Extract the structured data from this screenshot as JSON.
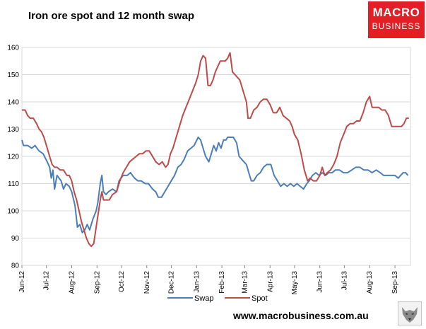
{
  "header": {
    "title": "Iron ore spot and 12 month swap",
    "logo_line1": "MACRO",
    "logo_line2": "BUSINESS"
  },
  "footer": {
    "url": "www.macrobusiness.com.au"
  },
  "colors": {
    "swap": "#4a7ebb",
    "spot": "#be4b48",
    "logo": "#e31e24",
    "grid": "#d9d9d9"
  },
  "icons": [
    "wolf-logo-icon"
  ],
  "chart_data": {
    "type": "line",
    "title": "Iron ore spot and 12 month swap",
    "xlabel": "",
    "ylabel": "",
    "ylim": [
      80,
      160
    ],
    "yticks": [
      80,
      90,
      100,
      110,
      120,
      130,
      140,
      150,
      160
    ],
    "xlim": [
      "2012-06-01",
      "2013-09-20"
    ],
    "x_ticks": [
      {
        "label": "Jun-12",
        "date": "2012-06-01"
      },
      {
        "label": "Jul-12",
        "date": "2012-07-01"
      },
      {
        "label": "Aug-12",
        "date": "2012-08-01"
      },
      {
        "label": "Sep-12",
        "date": "2012-09-01"
      },
      {
        "label": "Oct-12",
        "date": "2012-10-01"
      },
      {
        "label": "Nov-12",
        "date": "2012-11-01"
      },
      {
        "label": "Dec-12",
        "date": "2012-12-01"
      },
      {
        "label": "Jan-13",
        "date": "2013-01-01"
      },
      {
        "label": "Feb-13",
        "date": "2013-02-01"
      },
      {
        "label": "Mar-13",
        "date": "2013-03-01"
      },
      {
        "label": "Apr-13",
        "date": "2013-04-01"
      },
      {
        "label": "May-13",
        "date": "2013-05-01"
      },
      {
        "label": "Jun-13",
        "date": "2013-06-01"
      },
      {
        "label": "Jul-13",
        "date": "2013-07-01"
      },
      {
        "label": "Aug-13",
        "date": "2013-08-01"
      },
      {
        "label": "Sep-13",
        "date": "2013-09-01"
      }
    ],
    "grid": true,
    "legend": "bottom",
    "series": [
      {
        "name": "Swap",
        "points": [
          [
            "2012-06-01",
            126
          ],
          [
            "2012-06-03",
            124
          ],
          [
            "2012-06-08",
            124
          ],
          [
            "2012-06-13",
            123
          ],
          [
            "2012-06-17",
            124
          ],
          [
            "2012-06-22",
            122
          ],
          [
            "2012-06-27",
            121
          ],
          [
            "2012-07-02",
            118
          ],
          [
            "2012-07-05",
            116
          ],
          [
            "2012-07-07",
            112
          ],
          [
            "2012-07-09",
            115
          ],
          [
            "2012-07-11",
            108
          ],
          [
            "2012-07-14",
            113
          ],
          [
            "2012-07-19",
            111
          ],
          [
            "2012-07-22",
            108
          ],
          [
            "2012-07-25",
            110
          ],
          [
            "2012-07-29",
            109
          ],
          [
            "2012-08-01",
            107
          ],
          [
            "2012-08-05",
            102
          ],
          [
            "2012-08-08",
            94
          ],
          [
            "2012-08-11",
            95
          ],
          [
            "2012-08-14",
            92
          ],
          [
            "2012-08-17",
            93
          ],
          [
            "2012-08-20",
            95
          ],
          [
            "2012-08-23",
            93
          ],
          [
            "2012-08-27",
            97
          ],
          [
            "2012-08-31",
            100
          ],
          [
            "2012-09-02",
            103
          ],
          [
            "2012-09-05",
            110
          ],
          [
            "2012-09-07",
            113
          ],
          [
            "2012-09-09",
            107
          ],
          [
            "2012-09-12",
            106
          ],
          [
            "2012-09-15",
            107
          ],
          [
            "2012-09-20",
            108
          ],
          [
            "2012-09-25",
            107
          ],
          [
            "2012-09-28",
            111
          ],
          [
            "2012-10-03",
            113
          ],
          [
            "2012-10-08",
            113
          ],
          [
            "2012-10-12",
            114
          ],
          [
            "2012-10-17",
            112
          ],
          [
            "2012-10-21",
            111
          ],
          [
            "2012-10-25",
            111
          ],
          [
            "2012-10-30",
            110
          ],
          [
            "2012-11-03",
            110
          ],
          [
            "2012-11-08",
            108
          ],
          [
            "2012-11-12",
            107
          ],
          [
            "2012-11-15",
            105
          ],
          [
            "2012-11-19",
            105
          ],
          [
            "2012-11-23",
            107
          ],
          [
            "2012-11-27",
            109
          ],
          [
            "2012-12-01",
            111
          ],
          [
            "2012-12-05",
            113
          ],
          [
            "2012-12-09",
            116
          ],
          [
            "2012-12-13",
            117
          ],
          [
            "2012-12-17",
            119
          ],
          [
            "2012-12-21",
            122
          ],
          [
            "2012-12-25",
            123
          ],
          [
            "2012-12-29",
            124
          ],
          [
            "2013-01-03",
            127
          ],
          [
            "2013-01-06",
            126
          ],
          [
            "2013-01-09",
            123
          ],
          [
            "2013-01-12",
            120
          ],
          [
            "2013-01-16",
            118
          ],
          [
            "2013-01-19",
            121
          ],
          [
            "2013-01-22",
            124
          ],
          [
            "2013-01-25",
            122
          ],
          [
            "2013-01-28",
            125
          ],
          [
            "2013-01-31",
            123
          ],
          [
            "2013-02-03",
            126
          ],
          [
            "2013-02-06",
            126
          ],
          [
            "2013-02-08",
            127
          ],
          [
            "2013-02-11",
            127
          ],
          [
            "2013-02-15",
            127
          ],
          [
            "2013-02-19",
            125
          ],
          [
            "2013-02-22",
            120
          ],
          [
            "2013-02-25",
            119
          ],
          [
            "2013-02-28",
            118
          ],
          [
            "2013-03-03",
            117
          ],
          [
            "2013-03-06",
            114
          ],
          [
            "2013-03-09",
            111
          ],
          [
            "2013-03-12",
            111
          ],
          [
            "2013-03-16",
            113
          ],
          [
            "2013-03-20",
            114
          ],
          [
            "2013-03-24",
            116
          ],
          [
            "2013-03-28",
            117
          ],
          [
            "2013-04-02",
            117
          ],
          [
            "2013-04-06",
            113
          ],
          [
            "2013-04-10",
            111
          ],
          [
            "2013-04-14",
            109
          ],
          [
            "2013-04-18",
            110
          ],
          [
            "2013-04-22",
            109
          ],
          [
            "2013-04-26",
            110
          ],
          [
            "2013-04-30",
            109
          ],
          [
            "2013-05-04",
            110
          ],
          [
            "2013-05-08",
            109
          ],
          [
            "2013-05-12",
            108
          ],
          [
            "2013-05-16",
            110
          ],
          [
            "2013-05-19",
            111
          ],
          [
            "2013-05-23",
            113
          ],
          [
            "2013-05-27",
            114
          ],
          [
            "2013-05-31",
            113
          ],
          [
            "2013-06-04",
            114
          ],
          [
            "2013-06-08",
            113
          ],
          [
            "2013-06-12",
            114
          ],
          [
            "2013-06-16",
            114
          ],
          [
            "2013-06-20",
            115
          ],
          [
            "2013-06-25",
            115
          ],
          [
            "2013-06-30",
            114
          ],
          [
            "2013-07-05",
            114
          ],
          [
            "2013-07-10",
            115
          ],
          [
            "2013-07-15",
            116
          ],
          [
            "2013-07-20",
            116
          ],
          [
            "2013-07-25",
            115
          ],
          [
            "2013-07-30",
            115
          ],
          [
            "2013-08-04",
            114
          ],
          [
            "2013-08-09",
            115
          ],
          [
            "2013-08-14",
            114
          ],
          [
            "2013-08-18",
            113
          ],
          [
            "2013-08-22",
            113
          ],
          [
            "2013-08-27",
            113
          ],
          [
            "2013-09-01",
            113
          ],
          [
            "2013-09-05",
            112
          ],
          [
            "2013-09-08",
            113
          ],
          [
            "2013-09-11",
            114
          ],
          [
            "2013-09-14",
            114
          ],
          [
            "2013-09-17",
            113
          ]
        ]
      },
      {
        "name": "Spot",
        "points": [
          [
            "2012-06-01",
            137
          ],
          [
            "2012-06-05",
            137
          ],
          [
            "2012-06-08",
            135
          ],
          [
            "2012-06-11",
            134
          ],
          [
            "2012-06-15",
            134
          ],
          [
            "2012-06-19",
            132
          ],
          [
            "2012-06-22",
            130
          ],
          [
            "2012-06-25",
            129
          ],
          [
            "2012-06-28",
            127
          ],
          [
            "2012-07-01",
            124
          ],
          [
            "2012-07-04",
            121
          ],
          [
            "2012-07-06",
            119
          ],
          [
            "2012-07-08",
            117
          ],
          [
            "2012-07-11",
            116
          ],
          [
            "2012-07-14",
            116
          ],
          [
            "2012-07-18",
            115
          ],
          [
            "2012-07-22",
            115
          ],
          [
            "2012-07-26",
            113
          ],
          [
            "2012-07-29",
            113
          ],
          [
            "2012-08-01",
            111
          ],
          [
            "2012-08-04",
            107
          ],
          [
            "2012-08-07",
            104
          ],
          [
            "2012-08-10",
            100
          ],
          [
            "2012-08-13",
            96
          ],
          [
            "2012-08-16",
            93
          ],
          [
            "2012-08-19",
            90
          ],
          [
            "2012-08-22",
            88
          ],
          [
            "2012-08-25",
            87
          ],
          [
            "2012-08-28",
            88
          ],
          [
            "2012-08-31",
            94
          ],
          [
            "2012-09-03",
            100
          ],
          [
            "2012-09-05",
            104
          ],
          [
            "2012-09-07",
            107
          ],
          [
            "2012-09-09",
            104
          ],
          [
            "2012-09-12",
            104
          ],
          [
            "2012-09-16",
            104
          ],
          [
            "2012-09-20",
            106
          ],
          [
            "2012-09-25",
            107
          ],
          [
            "2012-09-29",
            111
          ],
          [
            "2012-10-03",
            114
          ],
          [
            "2012-10-07",
            116
          ],
          [
            "2012-10-11",
            118
          ],
          [
            "2012-10-15",
            119
          ],
          [
            "2012-10-19",
            120
          ],
          [
            "2012-10-23",
            121
          ],
          [
            "2012-10-27",
            121
          ],
          [
            "2012-10-31",
            122
          ],
          [
            "2012-11-04",
            122
          ],
          [
            "2012-11-08",
            120
          ],
          [
            "2012-11-12",
            118
          ],
          [
            "2012-11-16",
            117
          ],
          [
            "2012-11-20",
            118
          ],
          [
            "2012-11-24",
            116
          ],
          [
            "2012-11-27",
            117
          ],
          [
            "2012-11-30",
            121
          ],
          [
            "2012-12-03",
            123
          ],
          [
            "2012-12-07",
            127
          ],
          [
            "2012-12-11",
            131
          ],
          [
            "2012-12-15",
            135
          ],
          [
            "2012-12-19",
            138
          ],
          [
            "2012-12-23",
            141
          ],
          [
            "2012-12-27",
            144
          ],
          [
            "2012-12-31",
            147
          ],
          [
            "2013-01-03",
            150
          ],
          [
            "2013-01-06",
            155
          ],
          [
            "2013-01-09",
            157
          ],
          [
            "2013-01-12",
            156
          ],
          [
            "2013-01-15",
            146
          ],
          [
            "2013-01-18",
            146
          ],
          [
            "2013-01-21",
            148
          ],
          [
            "2013-01-24",
            151
          ],
          [
            "2013-01-27",
            153
          ],
          [
            "2013-01-30",
            155
          ],
          [
            "2013-02-02",
            155
          ],
          [
            "2013-02-05",
            155
          ],
          [
            "2013-02-08",
            156
          ],
          [
            "2013-02-11",
            158
          ],
          [
            "2013-02-14",
            151
          ],
          [
            "2013-02-17",
            150
          ],
          [
            "2013-02-20",
            149
          ],
          [
            "2013-02-23",
            148
          ],
          [
            "2013-02-26",
            145
          ],
          [
            "2013-02-28",
            143
          ],
          [
            "2013-03-03",
            140
          ],
          [
            "2013-03-05",
            134
          ],
          [
            "2013-03-08",
            134
          ],
          [
            "2013-03-12",
            137
          ],
          [
            "2013-03-16",
            138
          ],
          [
            "2013-03-20",
            140
          ],
          [
            "2013-03-24",
            141
          ],
          [
            "2013-03-28",
            141
          ],
          [
            "2013-04-01",
            139
          ],
          [
            "2013-04-05",
            136
          ],
          [
            "2013-04-09",
            136
          ],
          [
            "2013-04-13",
            138
          ],
          [
            "2013-04-17",
            135
          ],
          [
            "2013-04-21",
            134
          ],
          [
            "2013-04-25",
            133
          ],
          [
            "2013-04-28",
            131
          ],
          [
            "2013-05-01",
            128
          ],
          [
            "2013-05-05",
            126
          ],
          [
            "2013-05-09",
            121
          ],
          [
            "2013-05-13",
            115
          ],
          [
            "2013-05-17",
            111
          ],
          [
            "2013-05-20",
            112
          ],
          [
            "2013-05-24",
            111
          ],
          [
            "2013-05-28",
            111
          ],
          [
            "2013-06-01",
            113
          ],
          [
            "2013-06-04",
            116
          ],
          [
            "2013-06-07",
            113
          ],
          [
            "2013-06-10",
            114
          ],
          [
            "2013-06-14",
            115
          ],
          [
            "2013-06-18",
            117
          ],
          [
            "2013-06-22",
            120
          ],
          [
            "2013-06-26",
            125
          ],
          [
            "2013-06-30",
            128
          ],
          [
            "2013-07-04",
            131
          ],
          [
            "2013-07-08",
            132
          ],
          [
            "2013-07-12",
            132
          ],
          [
            "2013-07-16",
            133
          ],
          [
            "2013-07-20",
            133
          ],
          [
            "2013-07-24",
            136
          ],
          [
            "2013-07-28",
            140
          ],
          [
            "2013-08-01",
            142
          ],
          [
            "2013-08-04",
            138
          ],
          [
            "2013-08-08",
            138
          ],
          [
            "2013-08-12",
            138
          ],
          [
            "2013-08-16",
            137
          ],
          [
            "2013-08-20",
            137
          ],
          [
            "2013-08-24",
            135
          ],
          [
            "2013-08-28",
            131
          ],
          [
            "2013-09-01",
            131
          ],
          [
            "2013-09-05",
            131
          ],
          [
            "2013-09-09",
            131
          ],
          [
            "2013-09-12",
            132
          ],
          [
            "2013-09-15",
            134
          ],
          [
            "2013-09-18",
            134
          ]
        ]
      }
    ]
  }
}
